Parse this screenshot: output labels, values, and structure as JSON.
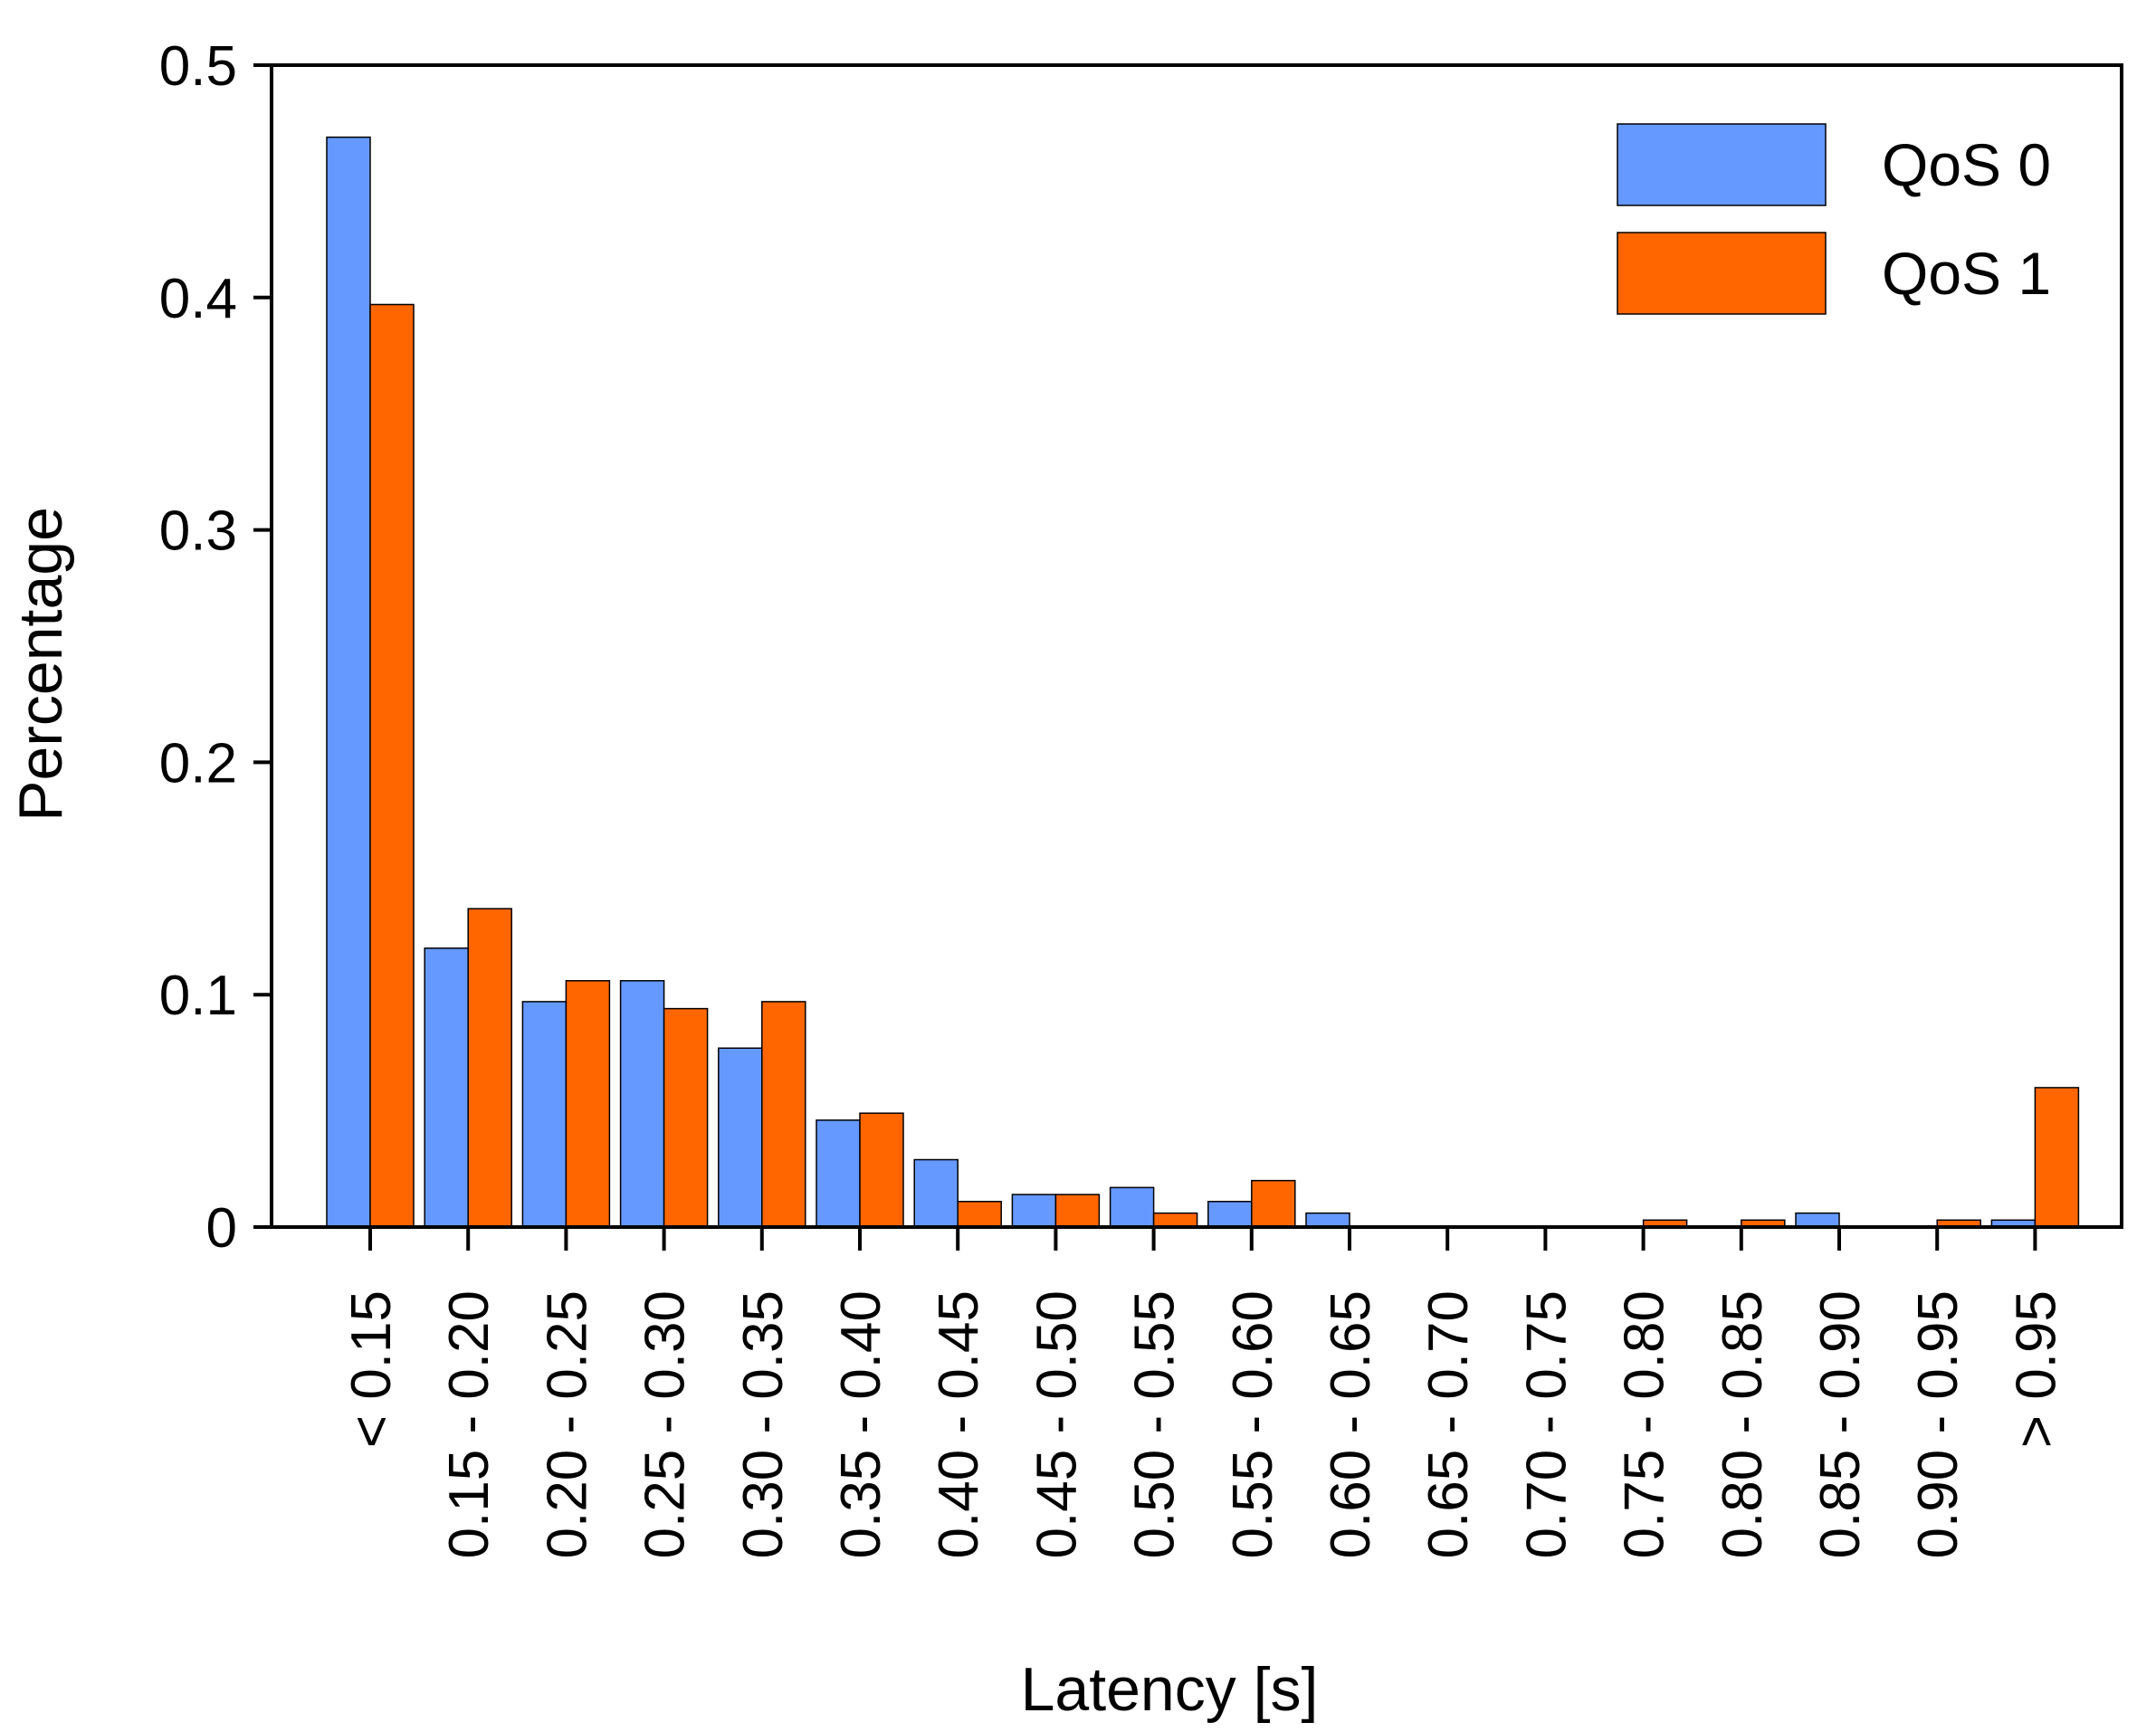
{
  "chart_data": {
    "type": "bar",
    "xlabel": "Latency [s]",
    "ylabel": "Percentage",
    "ylim": [
      0,
      0.5
    ],
    "yticks": [
      0,
      0.1,
      0.2,
      0.3,
      0.4,
      0.5
    ],
    "ytick_labels": [
      "0",
      "0.1",
      "0.2",
      "0.3",
      "0.4",
      "0.5"
    ],
    "categories": [
      "< 0.15",
      "0.15 - 0.20",
      "0.20 - 0.25",
      "0.25 - 0.30",
      "0.30 - 0.35",
      "0.35 - 0.40",
      "0.40 - 0.45",
      "0.45 - 0.50",
      "0.50 - 0.55",
      "0.55 - 0.60",
      "0.60 - 0.65",
      "0.65 - 0.70",
      "0.70 - 0.75",
      "0.75 - 0.80",
      "0.80 - 0.85",
      "0.85 - 0.90",
      "0.90 - 0.95",
      "> 0.95"
    ],
    "series": [
      {
        "name": "QoS 0",
        "color": "#6699ff",
        "values": [
          0.469,
          0.12,
          0.097,
          0.106,
          0.077,
          0.046,
          0.029,
          0.014,
          0.017,
          0.011,
          0.006,
          0,
          0,
          0,
          0,
          0.006,
          0,
          0.003
        ]
      },
      {
        "name": "QoS 1",
        "color": "#ff6600",
        "values": [
          0.397,
          0.137,
          0.106,
          0.094,
          0.097,
          0.049,
          0.011,
          0.014,
          0.006,
          0.02,
          0,
          0,
          0,
          0.003,
          0.003,
          0,
          0.003,
          0.06
        ]
      }
    ],
    "legend_position": "top-right",
    "grid": false
  }
}
